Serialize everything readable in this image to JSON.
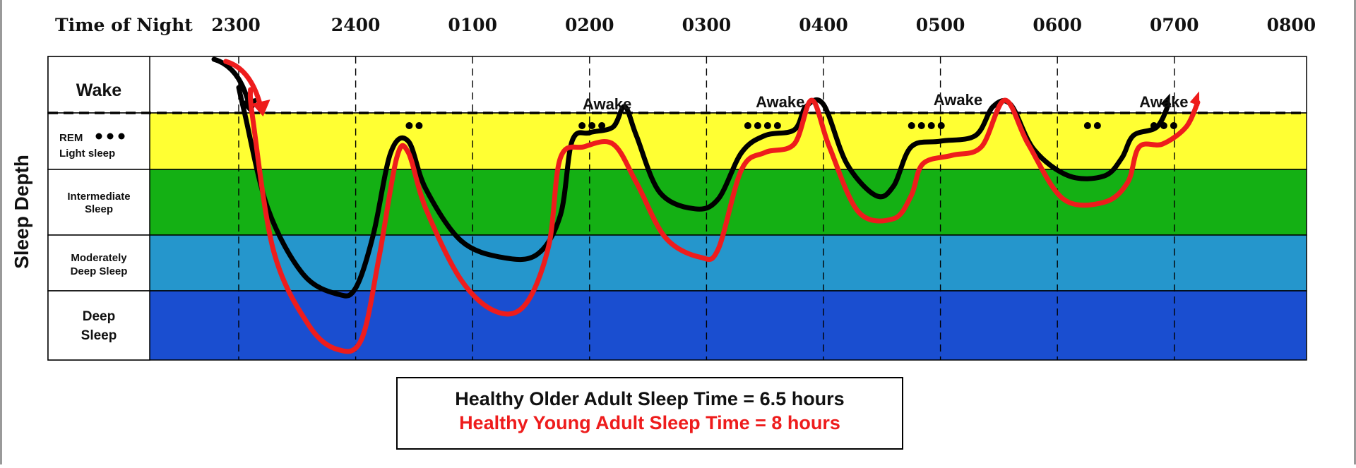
{
  "chart_data": {
    "type": "line",
    "title": "",
    "xlabel": "Time of Night",
    "ylabel": "Sleep Depth",
    "x_ticks": [
      "2300",
      "2400",
      "0100",
      "0200",
      "0300",
      "0400",
      "0500",
      "0600",
      "0700",
      "0800"
    ],
    "stages": [
      {
        "key": "wake",
        "label": "Wake",
        "color": "#ffffff"
      },
      {
        "key": "rem_light",
        "label": "REM",
        "sublabel": "Light sleep",
        "color": "#ffff33"
      },
      {
        "key": "intermediate",
        "label": "Intermediate Sleep",
        "color": "#14b014"
      },
      {
        "key": "moderate",
        "label": "Moderately Deep Sleep",
        "color": "#2596cc"
      },
      {
        "key": "deep",
        "label": "Deep Sleep",
        "color": "#1a4ed0"
      }
    ],
    "y_scale_note": "0 = Wake boundary, 1 = REM/Light, 2 = Intermediate, 3 = Moderately Deep, 4 = Deep",
    "series": [
      {
        "name": "Healthy Older Adult",
        "color": "#000000",
        "points": [
          [
            23.0,
            -0.6
          ],
          [
            23.05,
            0.0
          ],
          [
            23.25,
            1.6
          ],
          [
            23.55,
            2.7
          ],
          [
            23.85,
            3.05
          ],
          [
            24.0,
            2.95
          ],
          [
            24.15,
            2.0
          ],
          [
            24.3,
            0.7
          ],
          [
            24.45,
            0.5
          ],
          [
            24.6,
            1.3
          ],
          [
            24.9,
            2.1
          ],
          [
            25.25,
            2.4
          ],
          [
            25.55,
            2.35
          ],
          [
            25.75,
            1.7
          ],
          [
            25.85,
            0.5
          ],
          [
            26.0,
            0.35
          ],
          [
            26.2,
            0.25
          ],
          [
            26.3,
            -0.15
          ],
          [
            26.4,
            0.4
          ],
          [
            26.6,
            1.35
          ],
          [
            26.9,
            1.6
          ],
          [
            27.1,
            1.45
          ],
          [
            27.3,
            0.7
          ],
          [
            27.5,
            0.4
          ],
          [
            27.75,
            0.3
          ],
          [
            27.85,
            -0.15
          ],
          [
            28.0,
            -0.2
          ],
          [
            28.2,
            0.9
          ],
          [
            28.45,
            1.4
          ],
          [
            28.6,
            1.25
          ],
          [
            28.75,
            0.6
          ],
          [
            29.0,
            0.5
          ],
          [
            29.3,
            0.4
          ],
          [
            29.45,
            -0.15
          ],
          [
            29.6,
            -0.2
          ],
          [
            29.8,
            0.65
          ],
          [
            30.1,
            1.1
          ],
          [
            30.4,
            1.1
          ],
          [
            30.55,
            0.8
          ],
          [
            30.65,
            0.4
          ],
          [
            30.85,
            0.25
          ],
          [
            30.95,
            -0.2
          ]
        ]
      },
      {
        "name": "Healthy Young Adult",
        "color": "#ee1c1c",
        "points": [
          [
            23.1,
            -0.55
          ],
          [
            23.12,
            0.1
          ],
          [
            23.3,
            2.3
          ],
          [
            23.6,
            3.5
          ],
          [
            23.85,
            3.85
          ],
          [
            24.05,
            3.7
          ],
          [
            24.2,
            2.4
          ],
          [
            24.35,
            0.8
          ],
          [
            24.45,
            0.7
          ],
          [
            24.6,
            1.6
          ],
          [
            24.9,
            2.8
          ],
          [
            25.2,
            3.3
          ],
          [
            25.45,
            3.2
          ],
          [
            25.65,
            2.2
          ],
          [
            25.75,
            0.8
          ],
          [
            25.95,
            0.6
          ],
          [
            26.2,
            0.55
          ],
          [
            26.4,
            1.2
          ],
          [
            26.65,
            2.05
          ],
          [
            26.95,
            2.4
          ],
          [
            27.1,
            2.25
          ],
          [
            27.3,
            1.0
          ],
          [
            27.5,
            0.7
          ],
          [
            27.75,
            0.55
          ],
          [
            27.9,
            -0.3
          ],
          [
            28.05,
            0.6
          ],
          [
            28.3,
            1.65
          ],
          [
            28.6,
            1.75
          ],
          [
            28.75,
            1.4
          ],
          [
            28.85,
            0.9
          ],
          [
            29.1,
            0.75
          ],
          [
            29.35,
            0.6
          ],
          [
            29.55,
            -0.3
          ],
          [
            29.75,
            0.55
          ],
          [
            30.05,
            1.45
          ],
          [
            30.4,
            1.5
          ],
          [
            30.6,
            1.2
          ],
          [
            30.7,
            0.6
          ],
          [
            30.9,
            0.55
          ],
          [
            31.1,
            0.25
          ],
          [
            31.2,
            -0.25
          ]
        ]
      }
    ],
    "rem_markers": [
      {
        "x": 24.5,
        "count": 2
      },
      {
        "x": 26.02,
        "count": 3
      },
      {
        "x": 27.48,
        "count": 4
      },
      {
        "x": 28.88,
        "count": 4
      },
      {
        "x": 30.3,
        "count": 2
      },
      {
        "x": 30.91,
        "count": 3
      }
    ],
    "annotations": [
      {
        "text": "Awake",
        "x": 26.15,
        "depth": -0.55
      },
      {
        "text": "Awake",
        "x": 27.63,
        "depth": -0.6
      },
      {
        "text": "Awake",
        "x": 29.15,
        "depth": -0.65
      },
      {
        "text": "Awake",
        "x": 30.91,
        "depth": -0.6
      }
    ],
    "legend": [
      {
        "text": "Healthy Older Adult Sleep Time  = 6.5 hours",
        "color": "#111111"
      },
      {
        "text": "Healthy Young Adult Sleep Time = 8 hours",
        "color": "#ee1c1c"
      }
    ]
  }
}
